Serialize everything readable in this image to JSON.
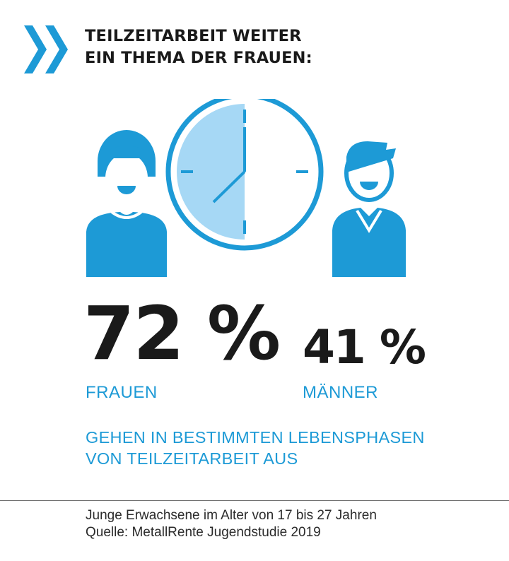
{
  "title": {
    "line1": "TEILZEITARBEIT WEITER",
    "line2": "EIN THEMA DER FRAUEN:"
  },
  "icons": {
    "chevrons": "double-chevron-right-icon",
    "clock": "clock-icon",
    "woman": "woman-icon",
    "man": "man-icon"
  },
  "colors": {
    "accent": "#1d9ad6",
    "accent_light": "#a6d8f5",
    "text": "#1a1a1a"
  },
  "stats": {
    "women": {
      "value": "72 %",
      "label": "FRAUEN"
    },
    "men": {
      "value": "41 %",
      "label": "MÄNNER"
    }
  },
  "description": {
    "line1": "GEHEN IN BESTIMMTEN LEBENSPHASEN",
    "line2": "VON TEILZEITARBEIT AUS"
  },
  "footer": {
    "line1": "Junge Erwachsene im Alter von 17 bis 27 Jahren",
    "line2": "Quelle: MetallRente Jugendstudie 2019"
  }
}
